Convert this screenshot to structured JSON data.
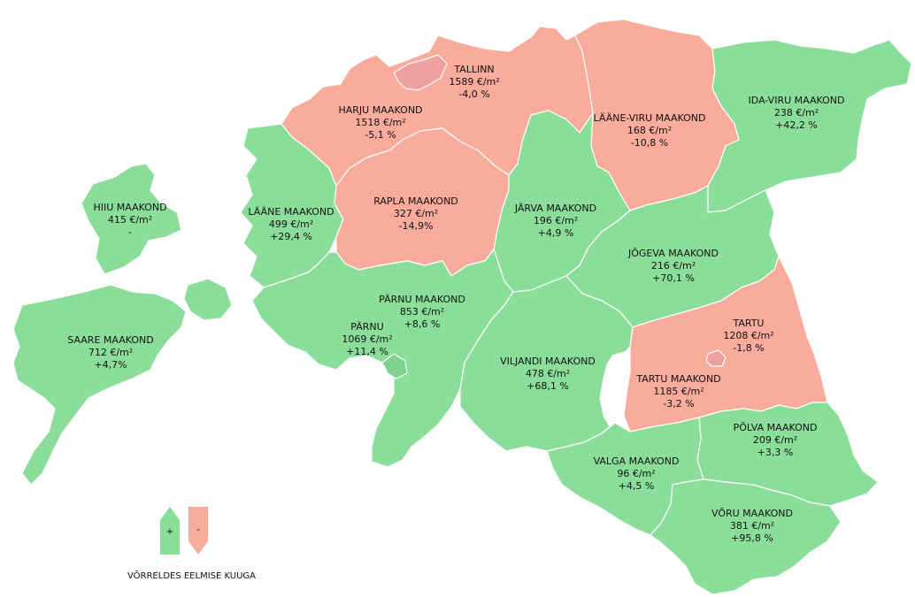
{
  "colors": {
    "increase": "#8bde9a",
    "decrease": "#f9ab9c",
    "city_decrease": "#eea0a0",
    "city_increase": "#7fd18e",
    "lake": "#ffffff"
  },
  "regions": {
    "tallinn": {
      "name": "TALLINN",
      "price": "1589 €/m²",
      "change": "-4,0 %",
      "trend": "down"
    },
    "harju": {
      "name": "HARJU MAAKOND",
      "price": "1518 €/m²",
      "change": "-5,1 %",
      "trend": "down"
    },
    "laane_viru": {
      "name": "LÄÄNE-VIRU MAAKOND",
      "price": "168 €/m²",
      "change": "-10,8 %",
      "trend": "down"
    },
    "ida_viru": {
      "name": "IDA-VIRU MAAKOND",
      "price": "238 €/m²",
      "change": "+42,2 %",
      "trend": "up"
    },
    "hiiu": {
      "name": "HIIU MAAKOND",
      "price": "415 €/m²",
      "change": "-",
      "trend": "up"
    },
    "laane": {
      "name": "LÄÄNE MAAKOND",
      "price": "499 €/m²",
      "change": "+29,4 %",
      "trend": "up"
    },
    "rapla": {
      "name": "RAPLA MAAKOND",
      "price": "327 €/m²",
      "change": "-14,9%",
      "trend": "down"
    },
    "jarva": {
      "name": "JÄRVA MAAKOND",
      "price": "196 €/m²",
      "change": "+4,9 %",
      "trend": "up"
    },
    "jogeva": {
      "name": "JÕGEVA MAAKOND",
      "price": "216 €/m²",
      "change": "+70,1 %",
      "trend": "up"
    },
    "parnu_mk": {
      "name": "PÄRNU MAAKOND",
      "price": "853 €/m²",
      "change": "+8,6 %",
      "trend": "up"
    },
    "parnu": {
      "name": "PÄRNU",
      "price": "1069 €/m²",
      "change": "+11,4 %",
      "trend": "up"
    },
    "saare": {
      "name": "SAARE MAAKOND",
      "price": "712 €/m²",
      "change": "+4,7%",
      "trend": "up"
    },
    "viljandi": {
      "name": "VILJANDI MAAKOND",
      "price": "478 €/m²",
      "change": "+68,1 %",
      "trend": "up"
    },
    "tartu": {
      "name": "TARTU",
      "price": "1208 €/m²",
      "change": "-1,8 %",
      "trend": "down"
    },
    "tartu_mk": {
      "name": "TARTU MAAKOND",
      "price": "1185 €/m²",
      "change": "-3,2 %",
      "trend": "down"
    },
    "polva": {
      "name": "PÕLVA MAAKOND",
      "price": "209 €/m²",
      "change": "+3,3 %",
      "trend": "up"
    },
    "valga": {
      "name": "VALGA MAAKOND",
      "price": "96 €/m²",
      "change": "+4,5 %",
      "trend": "up"
    },
    "voru": {
      "name": "VÕRU MAAKOND",
      "price": "381 €/m²",
      "change": "+95,8 %",
      "trend": "up"
    }
  },
  "legend": {
    "plus": "+",
    "minus": "-",
    "caption": "VÕRRELDES EELMISE KUUGA"
  }
}
